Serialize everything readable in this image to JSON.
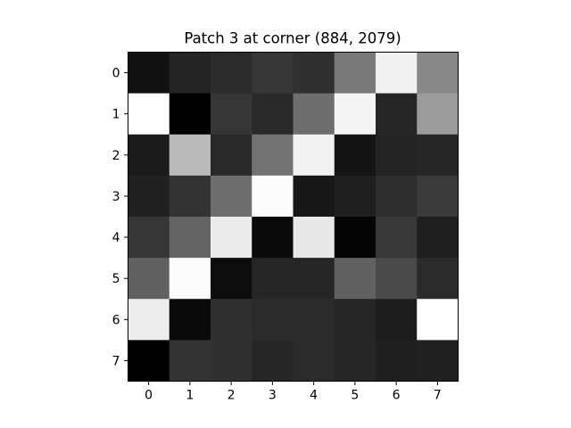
{
  "chart_data": {
    "type": "heatmap",
    "title": "Patch 3 at corner (884, 2079)",
    "xlabel": "",
    "ylabel": "",
    "colormap": "gray",
    "x_ticks": [
      "0",
      "1",
      "2",
      "3",
      "4",
      "5",
      "6",
      "7"
    ],
    "y_ticks": [
      "0",
      "1",
      "2",
      "3",
      "4",
      "5",
      "6",
      "7"
    ],
    "xlim": [
      -0.5,
      7.5
    ],
    "ylim": [
      7.5,
      -0.5
    ],
    "grid": false,
    "values": [
      [
        0.07,
        0.14,
        0.17,
        0.21,
        0.19,
        0.47,
        0.94,
        0.53
      ],
      [
        1.0,
        0.0,
        0.21,
        0.16,
        0.43,
        0.96,
        0.15,
        0.61
      ],
      [
        0.1,
        0.73,
        0.16,
        0.45,
        0.95,
        0.08,
        0.14,
        0.15
      ],
      [
        0.13,
        0.2,
        0.43,
        0.99,
        0.09,
        0.12,
        0.18,
        0.23
      ],
      [
        0.21,
        0.39,
        0.92,
        0.04,
        0.91,
        0.02,
        0.22,
        0.12
      ],
      [
        0.38,
        0.99,
        0.05,
        0.15,
        0.15,
        0.38,
        0.29,
        0.17
      ],
      [
        0.93,
        0.04,
        0.19,
        0.17,
        0.17,
        0.15,
        0.11,
        1.0
      ],
      [
        0.0,
        0.2,
        0.19,
        0.15,
        0.17,
        0.15,
        0.12,
        0.13
      ]
    ]
  }
}
